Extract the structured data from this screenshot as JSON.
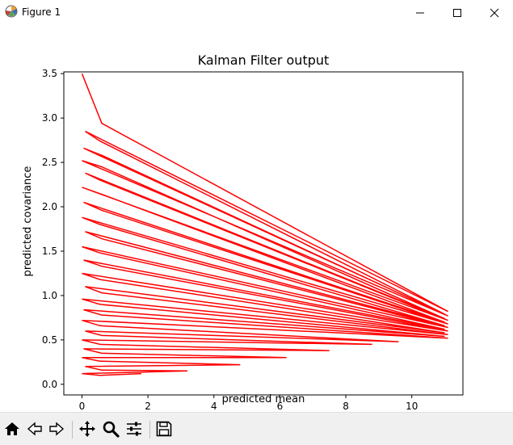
{
  "window": {
    "title": "Figure 1",
    "app_icon": "matplotlib-icon",
    "controls": [
      "minimize-icon",
      "maximize-icon",
      "close-icon"
    ]
  },
  "toolbar": {
    "buttons": [
      {
        "name": "home-button",
        "icon": "home-icon"
      },
      {
        "name": "back-button",
        "icon": "back-arrow-icon"
      },
      {
        "name": "forward-button",
        "icon": "forward-arrow-icon"
      },
      {
        "name": "pan-button",
        "icon": "move-icon"
      },
      {
        "name": "zoom-button",
        "icon": "zoom-icon"
      },
      {
        "name": "configure-subplots-button",
        "icon": "sliders-icon"
      },
      {
        "name": "save-button",
        "icon": "save-icon"
      }
    ]
  },
  "chart_data": {
    "type": "line",
    "title": "Kalman Filter output",
    "xlabel": "predicted mean",
    "ylabel": "predicted covariance",
    "xlim": [
      -0.55,
      11.55
    ],
    "ylim": [
      -0.12,
      3.52
    ],
    "xticks": [
      0,
      2,
      4,
      6,
      8,
      10
    ],
    "yticks": [
      0.0,
      0.5,
      1.0,
      1.5,
      2.0,
      2.5,
      3.0,
      3.5
    ],
    "line_color": "#ff0000",
    "series": [
      {
        "name": "prediction",
        "points": [
          [
            0.0,
            3.5
          ],
          [
            0.6,
            2.94
          ],
          [
            11.1,
            0.82
          ],
          [
            0.1,
            2.85
          ],
          [
            0.55,
            2.74
          ],
          [
            11.0,
            0.79
          ],
          [
            0.05,
            2.66
          ],
          [
            0.6,
            2.58
          ],
          [
            11.1,
            0.77
          ],
          [
            0.0,
            2.52
          ],
          [
            0.6,
            2.45
          ],
          [
            11.0,
            0.74
          ],
          [
            0.1,
            2.38
          ],
          [
            0.55,
            2.3
          ],
          [
            11.1,
            0.72
          ],
          [
            0.0,
            2.22
          ],
          [
            0.6,
            2.14
          ],
          [
            11.0,
            0.7
          ],
          [
            0.05,
            2.05
          ],
          [
            0.6,
            1.96
          ],
          [
            11.1,
            0.68
          ],
          [
            0.0,
            1.88
          ],
          [
            0.55,
            1.8
          ],
          [
            11.0,
            0.66
          ],
          [
            0.1,
            1.72
          ],
          [
            0.6,
            1.64
          ],
          [
            11.1,
            0.64
          ],
          [
            0.0,
            1.55
          ],
          [
            0.55,
            1.48
          ],
          [
            11.0,
            0.62
          ],
          [
            0.05,
            1.4
          ],
          [
            0.6,
            1.33
          ],
          [
            11.1,
            0.6
          ],
          [
            0.0,
            1.25
          ],
          [
            0.55,
            1.18
          ],
          [
            11.0,
            0.58
          ],
          [
            0.1,
            1.1
          ],
          [
            0.6,
            1.03
          ],
          [
            11.1,
            0.56
          ],
          [
            0.0,
            0.96
          ],
          [
            0.55,
            0.9
          ],
          [
            11.0,
            0.54
          ],
          [
            0.05,
            0.84
          ],
          [
            0.6,
            0.78
          ],
          [
            11.1,
            0.52
          ],
          [
            0.0,
            0.72
          ],
          [
            0.55,
            0.66
          ],
          [
            9.6,
            0.48
          ],
          [
            0.1,
            0.6
          ],
          [
            0.6,
            0.55
          ],
          [
            8.8,
            0.45
          ],
          [
            0.0,
            0.5
          ],
          [
            0.55,
            0.45
          ],
          [
            7.5,
            0.38
          ],
          [
            0.05,
            0.4
          ],
          [
            0.6,
            0.35
          ],
          [
            6.2,
            0.3
          ],
          [
            0.0,
            0.3
          ],
          [
            0.55,
            0.26
          ],
          [
            4.8,
            0.22
          ],
          [
            0.1,
            0.2
          ],
          [
            0.6,
            0.16
          ],
          [
            3.2,
            0.15
          ],
          [
            0.0,
            0.12
          ],
          [
            0.55,
            0.1
          ],
          [
            1.8,
            0.12
          ]
        ]
      }
    ]
  }
}
